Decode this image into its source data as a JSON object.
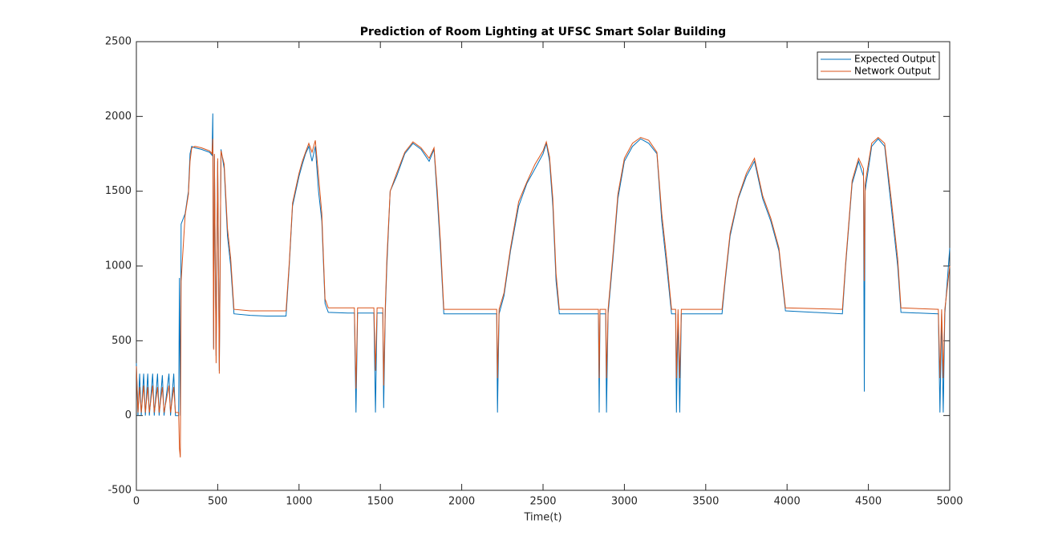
{
  "chart_data": {
    "type": "line",
    "title": "Prediction of Room Lighting at UFSC Smart Solar Building",
    "x_label": "Time(t)",
    "x": [
      0,
      10,
      20,
      30,
      45,
      55,
      70,
      80,
      100,
      110,
      130,
      140,
      160,
      170,
      200,
      210,
      230,
      240,
      260,
      265,
      270,
      275,
      300,
      320,
      330,
      340,
      360,
      400,
      450,
      465,
      470,
      475,
      480,
      490,
      500,
      510,
      520,
      540,
      560,
      580,
      600,
      700,
      800,
      920,
      940,
      960,
      980,
      1000,
      1020,
      1040,
      1060,
      1080,
      1100,
      1120,
      1140,
      1160,
      1180,
      1300,
      1340,
      1350,
      1360,
      1460,
      1470,
      1480,
      1515,
      1520,
      1530,
      1540,
      1560,
      1600,
      1650,
      1700,
      1750,
      1800,
      1830,
      1850,
      1870,
      1890,
      2000,
      2215,
      2220,
      2230,
      2260,
      2300,
      2350,
      2400,
      2450,
      2500,
      2520,
      2540,
      2560,
      2580,
      2600,
      2840,
      2845,
      2850,
      2885,
      2890,
      2900,
      2930,
      2960,
      3000,
      3050,
      3100,
      3150,
      3200,
      3230,
      3260,
      3290,
      3315,
      3320,
      3330,
      3340,
      3350,
      3600,
      3620,
      3650,
      3700,
      3750,
      3800,
      3850,
      3900,
      3950,
      3970,
      3990,
      4340,
      4360,
      4400,
      4440,
      4470,
      4475,
      4480,
      4520,
      4560,
      4600,
      4640,
      4680,
      4700,
      4930,
      4940,
      4950,
      4960,
      4970,
      5000
    ],
    "series": [
      {
        "name": "Expected Output",
        "color": "#0072bd",
        "values": [
          350,
          0,
          280,
          0,
          280,
          0,
          280,
          0,
          280,
          0,
          280,
          0,
          270,
          0,
          280,
          0,
          280,
          0,
          0,
          920,
          0,
          1280,
          1350,
          1500,
          1750,
          1800,
          1790,
          1780,
          1760,
          1740,
          2020,
          450,
          1740,
          400,
          1700,
          300,
          1780,
          1650,
          1200,
          1000,
          680,
          670,
          665,
          665,
          1000,
          1400,
          1500,
          1600,
          1680,
          1750,
          1800,
          1700,
          1800,
          1500,
          1300,
          750,
          690,
          685,
          685,
          20,
          685,
          685,
          20,
          685,
          685,
          50,
          685,
          1000,
          1500,
          1600,
          1750,
          1820,
          1780,
          1700,
          1780,
          1450,
          1100,
          680,
          680,
          680,
          20,
          680,
          800,
          1100,
          1400,
          1550,
          1650,
          1750,
          1820,
          1700,
          1400,
          900,
          680,
          680,
          20,
          680,
          680,
          20,
          680,
          1050,
          1450,
          1700,
          1800,
          1850,
          1820,
          1750,
          1300,
          1000,
          680,
          680,
          20,
          680,
          20,
          680,
          680,
          900,
          1200,
          1450,
          1600,
          1700,
          1450,
          1300,
          1100,
          900,
          700,
          680,
          1000,
          1550,
          1700,
          1600,
          160,
          1500,
          1800,
          1850,
          1800,
          1400,
          1000,
          690,
          680,
          20,
          680,
          20,
          680,
          1120
        ]
      },
      {
        "name": "Network Output",
        "color": "#d95319",
        "values": [
          330,
          20,
          190,
          20,
          200,
          20,
          190,
          20,
          200,
          20,
          190,
          20,
          190,
          20,
          200,
          20,
          190,
          20,
          20,
          -220,
          -280,
          900,
          1340,
          1480,
          1700,
          1790,
          1800,
          1790,
          1770,
          1750,
          1850,
          440,
          1750,
          350,
          1720,
          280,
          1770,
          1680,
          1250,
          1050,
          710,
          700,
          700,
          700,
          1020,
          1420,
          1520,
          1620,
          1700,
          1760,
          1820,
          1760,
          1840,
          1600,
          1350,
          780,
          720,
          720,
          720,
          180,
          720,
          720,
          300,
          720,
          720,
          200,
          720,
          1050,
          1500,
          1620,
          1760,
          1830,
          1790,
          1720,
          1790,
          1500,
          1150,
          710,
          710,
          710,
          250,
          710,
          820,
          1120,
          1430,
          1560,
          1680,
          1770,
          1830,
          1730,
          1450,
          950,
          710,
          710,
          250,
          710,
          710,
          250,
          710,
          1080,
          1480,
          1720,
          1820,
          1860,
          1840,
          1760,
          1350,
          1050,
          710,
          710,
          250,
          710,
          250,
          710,
          710,
          920,
          1220,
          1460,
          1620,
          1720,
          1470,
          1320,
          1120,
          920,
          720,
          710,
          1020,
          1570,
          1720,
          1650,
          900,
          1550,
          1820,
          1860,
          1820,
          1450,
          1050,
          720,
          710,
          250,
          710,
          250,
          710,
          1000
        ]
      }
    ],
    "xlim": [
      0,
      5000
    ],
    "xticks": [
      0,
      500,
      1000,
      1500,
      2000,
      2500,
      3000,
      3500,
      4000,
      4500,
      5000
    ],
    "ylim": [
      -500,
      2500
    ],
    "yticks": [
      -500,
      0,
      500,
      1000,
      1500,
      2000,
      2500
    ],
    "legend": "upper right"
  }
}
